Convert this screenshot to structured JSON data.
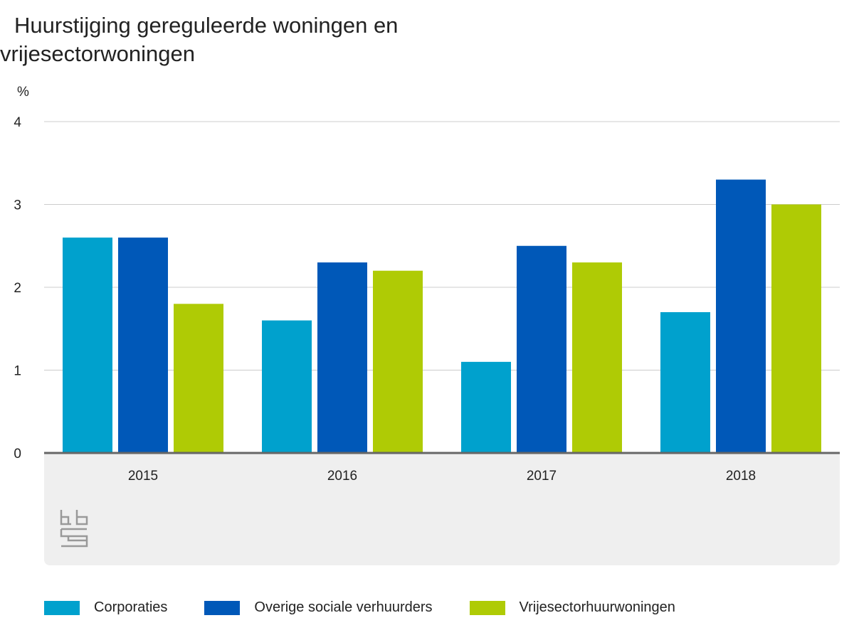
{
  "chart_data": {
    "type": "bar",
    "title": "Huurstijging gereguleerde woningen en vrijesectorwoningen",
    "ylabel": "%",
    "xlabel": "",
    "ylim": [
      0,
      4
    ],
    "yticks": [
      0,
      1,
      2,
      3,
      4
    ],
    "categories": [
      "2015",
      "2016",
      "2017",
      "2018"
    ],
    "series": [
      {
        "name": "Corporaties",
        "color": "#00a1cd",
        "values": [
          2.6,
          1.6,
          1.1,
          1.7
        ]
      },
      {
        "name": "Overige sociale verhuurders",
        "color": "#0058b8",
        "values": [
          2.6,
          2.3,
          2.5,
          3.3
        ]
      },
      {
        "name": "Vrijesectorhuurwoningen",
        "color": "#afcb05",
        "values": [
          1.8,
          2.2,
          2.3,
          3.0
        ]
      }
    ],
    "grid": true,
    "legend": "bottom"
  }
}
